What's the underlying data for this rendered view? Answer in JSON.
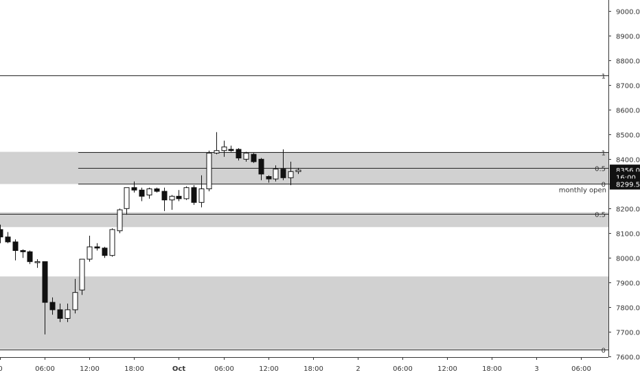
{
  "chart_data": {
    "type": "candlestick",
    "y_axis": {
      "ticks": [
        "9000.0",
        "8900.0",
        "8800.0",
        "8700.0",
        "8600.0",
        "8500.0",
        "8400.0",
        "8300.0",
        "8200.0",
        "8100.0",
        "8000.0",
        "7900.0",
        "7800.0",
        "7700.0",
        "7600.0"
      ],
      "range": [
        7580,
        9020
      ]
    },
    "x_axis": {
      "ticks": [
        {
          "label": "0",
          "hour": 0
        },
        {
          "label": "06:00",
          "hour": 6
        },
        {
          "label": "12:00",
          "hour": 12
        },
        {
          "label": "18:00",
          "hour": 18
        },
        {
          "label": "Oct",
          "hour": 24
        },
        {
          "label": "06:00",
          "hour": 30
        },
        {
          "label": "12:00",
          "hour": 36
        },
        {
          "label": "18:00",
          "hour": 42
        },
        {
          "label": "2",
          "hour": 48
        },
        {
          "label": "06:00",
          "hour": 54
        },
        {
          "label": "12:00",
          "hour": 60
        },
        {
          "label": "18:00",
          "hour": 66
        },
        {
          "label": "3",
          "hour": 72
        },
        {
          "label": "06:00",
          "hour": 78
        }
      ]
    },
    "candle_hours": 1,
    "candles": [
      {
        "t": 0,
        "o": 8115,
        "h": 8135,
        "l": 8060,
        "c": 8085
      },
      {
        "t": 1,
        "o": 8085,
        "h": 8105,
        "l": 8060,
        "c": 8065
      },
      {
        "t": 2,
        "o": 8065,
        "h": 8075,
        "l": 7990,
        "c": 8030
      },
      {
        "t": 3,
        "o": 8030,
        "h": 8035,
        "l": 8000,
        "c": 8025
      },
      {
        "t": 4,
        "o": 8025,
        "h": 8030,
        "l": 7975,
        "c": 7985
      },
      {
        "t": 5,
        "o": 7985,
        "h": 7995,
        "l": 7960,
        "c": 7985
      },
      {
        "t": 6,
        "o": 7985,
        "h": 7985,
        "l": 7690,
        "c": 7820
      },
      {
        "t": 7,
        "o": 7820,
        "h": 7840,
        "l": 7770,
        "c": 7790
      },
      {
        "t": 8,
        "o": 7790,
        "h": 7815,
        "l": 7740,
        "c": 7755
      },
      {
        "t": 9,
        "o": 7755,
        "h": 7815,
        "l": 7740,
        "c": 7790
      },
      {
        "t": 10,
        "o": 7790,
        "h": 7915,
        "l": 7775,
        "c": 7860
      },
      {
        "t": 11,
        "o": 7870,
        "h": 7995,
        "l": 7850,
        "c": 7995
      },
      {
        "t": 12,
        "o": 7995,
        "h": 8090,
        "l": 7985,
        "c": 8045
      },
      {
        "t": 13,
        "o": 8045,
        "h": 8060,
        "l": 8030,
        "c": 8040
      },
      {
        "t": 14,
        "o": 8040,
        "h": 8045,
        "l": 8000,
        "c": 8010
      },
      {
        "t": 15,
        "o": 8010,
        "h": 8120,
        "l": 8005,
        "c": 8115
      },
      {
        "t": 16,
        "o": 8110,
        "h": 8200,
        "l": 8100,
        "c": 8195
      },
      {
        "t": 17,
        "o": 8200,
        "h": 8285,
        "l": 8175,
        "c": 8285
      },
      {
        "t": 18,
        "o": 8285,
        "h": 8310,
        "l": 8265,
        "c": 8275
      },
      {
        "t": 19,
        "o": 8275,
        "h": 8285,
        "l": 8230,
        "c": 8250
      },
      {
        "t": 20,
        "o": 8255,
        "h": 8285,
        "l": 8240,
        "c": 8280
      },
      {
        "t": 21,
        "o": 8280,
        "h": 8285,
        "l": 8265,
        "c": 8270
      },
      {
        "t": 22,
        "o": 8270,
        "h": 8285,
        "l": 8190,
        "c": 8235
      },
      {
        "t": 23,
        "o": 8235,
        "h": 8255,
        "l": 8195,
        "c": 8250
      },
      {
        "t": 24,
        "o": 8250,
        "h": 8275,
        "l": 8230,
        "c": 8240
      },
      {
        "t": 25,
        "o": 8240,
        "h": 8290,
        "l": 8235,
        "c": 8285
      },
      {
        "t": 26,
        "o": 8285,
        "h": 8295,
        "l": 8215,
        "c": 8225
      },
      {
        "t": 27,
        "o": 8225,
        "h": 8335,
        "l": 8205,
        "c": 8280
      },
      {
        "t": 28,
        "o": 8280,
        "h": 8435,
        "l": 8270,
        "c": 8425
      },
      {
        "t": 29,
        "o": 8425,
        "h": 8510,
        "l": 8420,
        "c": 8435
      },
      {
        "t": 30,
        "o": 8435,
        "h": 8475,
        "l": 8410,
        "c": 8450
      },
      {
        "t": 31,
        "o": 8440,
        "h": 8455,
        "l": 8430,
        "c": 8435
      },
      {
        "t": 32,
        "o": 8440,
        "h": 8445,
        "l": 8395,
        "c": 8405
      },
      {
        "t": 33,
        "o": 8400,
        "h": 8430,
        "l": 8390,
        "c": 8425
      },
      {
        "t": 34,
        "o": 8420,
        "h": 8425,
        "l": 8385,
        "c": 8390
      },
      {
        "t": 35,
        "o": 8400,
        "h": 8405,
        "l": 8315,
        "c": 8340
      },
      {
        "t": 36,
        "o": 8330,
        "h": 8335,
        "l": 8305,
        "c": 8320
      },
      {
        "t": 37,
        "o": 8320,
        "h": 8375,
        "l": 8310,
        "c": 8360
      },
      {
        "t": 38,
        "o": 8360,
        "h": 8440,
        "l": 8315,
        "c": 8325
      },
      {
        "t": 39,
        "o": 8325,
        "h": 8390,
        "l": 8295,
        "c": 8350
      },
      {
        "t": 40,
        "o": 8350,
        "h": 8365,
        "l": 8340,
        "c": 8356
      }
    ],
    "zones": [
      {
        "from": 8299.5,
        "to": 8430
      },
      {
        "from": 8125,
        "to": 8185
      },
      {
        "from": 7630,
        "to": 7925
      }
    ],
    "levels": [
      {
        "price": 8740,
        "label": "1",
        "from_hour": -5
      },
      {
        "price": 8430,
        "label": "1",
        "from_hour": 10.5
      },
      {
        "price": 8365,
        "label": "0.5",
        "from_hour": 10.5
      },
      {
        "price": 8299.5,
        "label": "0",
        "from_hour": 10.5
      },
      {
        "price": 8180,
        "label": "0.5",
        "from_hour": -5
      },
      {
        "price": 7630,
        "label": "0",
        "from_hour": -5
      }
    ],
    "price_tags": [
      {
        "price": 8356.0,
        "text": "8356.0"
      },
      {
        "price": 8327.5,
        "text": "16:00"
      },
      {
        "price": 8299.5,
        "text": "8299.5"
      }
    ],
    "annotation": {
      "text": "monthly open",
      "price": 8299.5
    }
  }
}
